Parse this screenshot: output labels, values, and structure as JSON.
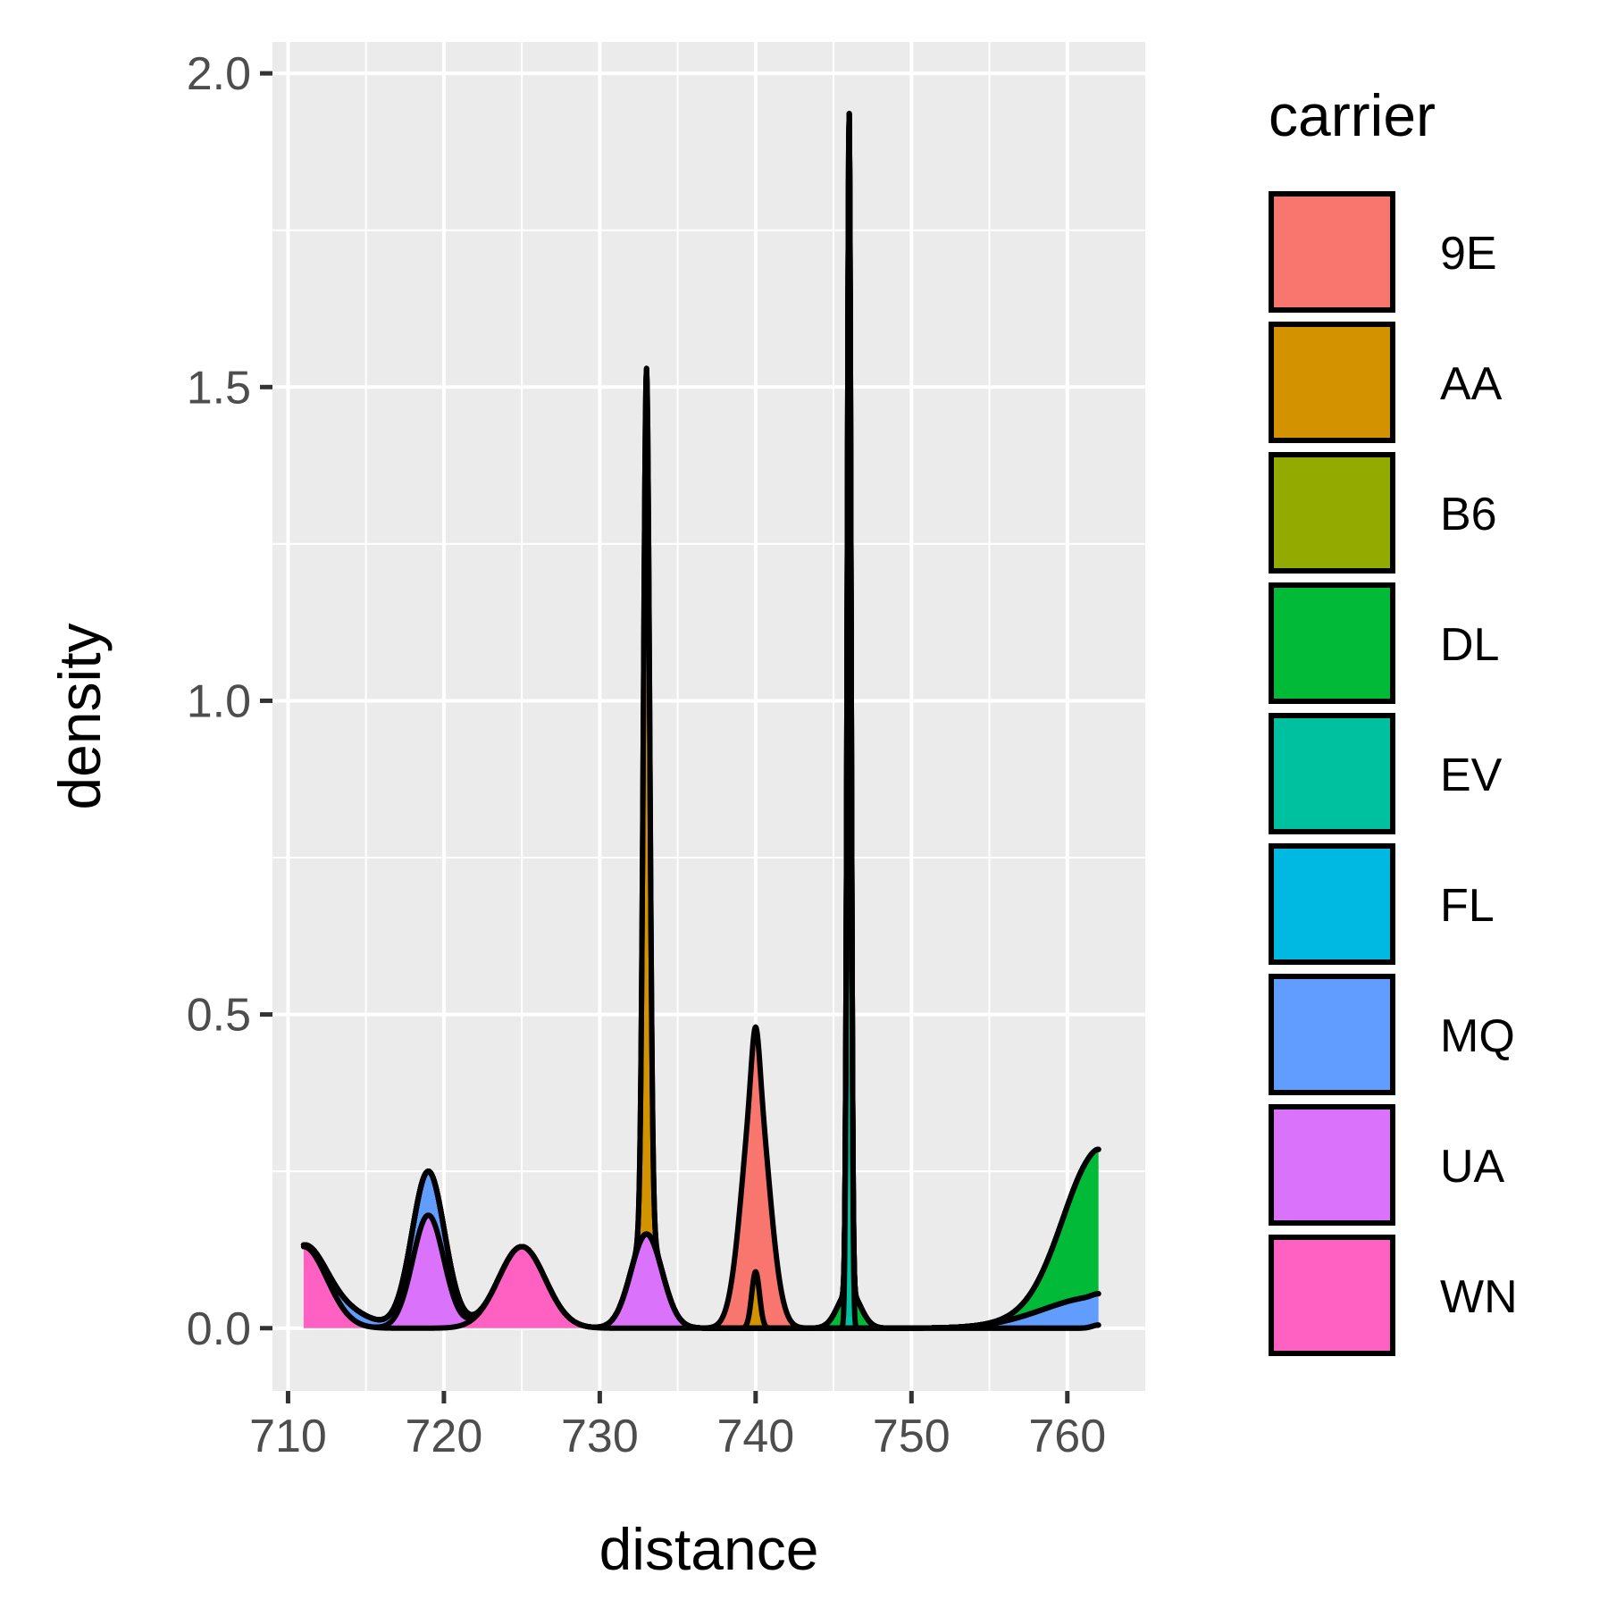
{
  "chart_data": {
    "type": "area",
    "stacked": true,
    "xlabel": "distance",
    "ylabel": "density",
    "xlim": [
      709,
      765
    ],
    "ylim": [
      -0.1,
      2.05
    ],
    "x_ticks": [
      710,
      720,
      730,
      740,
      750,
      760
    ],
    "y_ticks": [
      0.0,
      0.5,
      1.0,
      1.5,
      2.0
    ],
    "x_tick_labels": [
      "710",
      "720",
      "730",
      "740",
      "750",
      "760"
    ],
    "y_tick_labels": [
      "0.0",
      "0.5",
      "1.0",
      "1.5",
      "2.0"
    ],
    "grid": true,
    "legend_position": "right",
    "legend": {
      "title": "carrier",
      "labels": [
        "9E",
        "AA",
        "B6",
        "DL",
        "EV",
        "FL",
        "MQ",
        "UA",
        "WN"
      ]
    },
    "colors": {
      "panel_bg": "#ebebeb",
      "grid": "#ffffff",
      "outline": "#000000"
    },
    "series": [
      {
        "name": "9E",
        "color": "#F8766D",
        "components": [
          {
            "mu": 740,
            "sigma": 0.85,
            "peak": 0.39
          }
        ]
      },
      {
        "name": "AA",
        "color": "#D39200",
        "components": [
          {
            "mu": 733,
            "sigma": 0.2,
            "peak": 1.38
          },
          {
            "mu": 740,
            "sigma": 0.25,
            "peak": 0.09
          }
        ]
      },
      {
        "name": "B6",
        "color": "#93AA00",
        "components": []
      },
      {
        "name": "DL",
        "color": "#00BA38",
        "components": [
          {
            "mu": 746,
            "sigma": 0.7,
            "peak": 0.06
          },
          {
            "mu": 762,
            "sigma": 2.2,
            "peak": 0.23
          }
        ]
      },
      {
        "name": "EV",
        "color": "#00C19F",
        "components": [
          {
            "mu": 746,
            "sigma": 0.12,
            "peak": 1.88
          }
        ]
      },
      {
        "name": "FL",
        "color": "#00B9E3",
        "components": []
      },
      {
        "name": "MQ",
        "color": "#619CFF",
        "components": [
          {
            "mu": 719,
            "sigma": 1.2,
            "peak": 0.07
          },
          {
            "mu": 714,
            "sigma": 1.5,
            "peak": 0.02
          },
          {
            "mu": 762,
            "sigma": 3.5,
            "peak": 0.05
          }
        ]
      },
      {
        "name": "UA",
        "color": "#DB72FB",
        "components": [
          {
            "mu": 719,
            "sigma": 1.0,
            "peak": 0.18
          },
          {
            "mu": 733,
            "sigma": 1.0,
            "peak": 0.15
          }
        ]
      },
      {
        "name": "WN",
        "color": "#FF61C3",
        "components": [
          {
            "mu": 711,
            "sigma": 1.5,
            "peak": 0.13
          },
          {
            "mu": 725,
            "sigma": 1.5,
            "peak": 0.13
          },
          {
            "mu": 762,
            "sigma": 0.4,
            "peak": 0.005
          }
        ]
      }
    ],
    "x_range": [
      711,
      762
    ]
  }
}
